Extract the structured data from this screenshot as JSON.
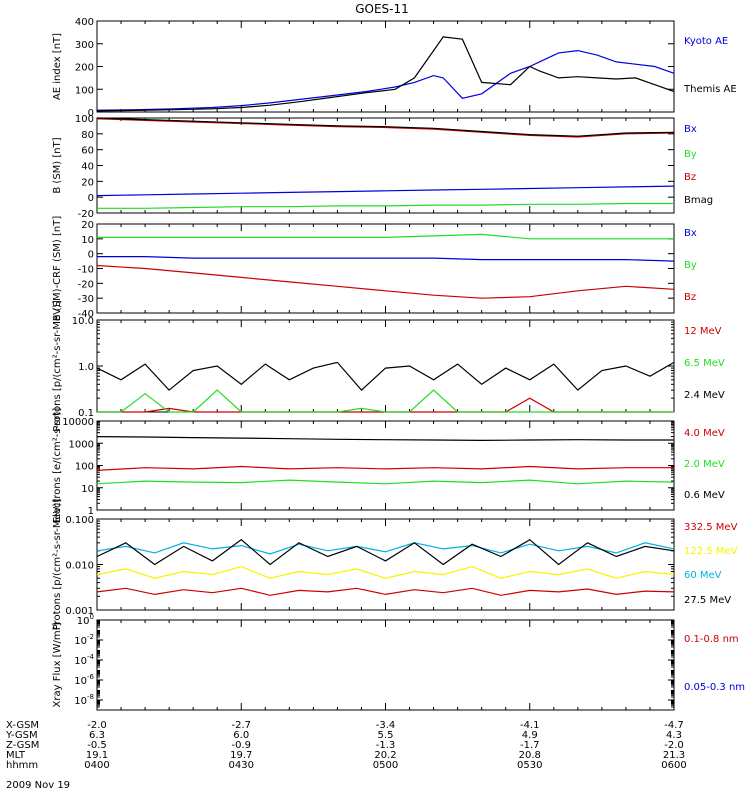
{
  "title": "GOES-11",
  "footer_date": "2009 Nov 19",
  "colors": {
    "black": "#000000",
    "red": "#cc0000",
    "green": "#22dd22",
    "blue": "#0000dd",
    "cyan": "#00b0e0",
    "yellow": "#f5f500"
  },
  "ephemeris": {
    "labels": [
      "X-GSM",
      "Y-GSM",
      "Z-GSM",
      "MLT",
      "hhmm"
    ],
    "columns": [
      [
        "-2.0",
        "6.3",
        "-0.5",
        "19.1",
        "0400"
      ],
      [
        "-2.7",
        "6.0",
        "-0.9",
        "19.7",
        "0430"
      ],
      [
        "-3.4",
        "5.5",
        "-1.3",
        "20.2",
        "0500"
      ],
      [
        "-4.1",
        "4.9",
        "-1.7",
        "20.8",
        "0530"
      ],
      [
        "-4.7",
        "4.3",
        "-2.0",
        "21.3",
        "0600"
      ]
    ]
  },
  "chart_data": [
    {
      "type": "line",
      "ylabel": "AE index [nT]",
      "ylim": [
        0,
        400
      ],
      "yscale": "linear",
      "yticks": [
        0,
        100,
        200,
        300,
        400
      ],
      "ytick_labels": [
        "0",
        "100",
        "200",
        "300",
        "400"
      ],
      "x": [
        0,
        8,
        16,
        24,
        30,
        36,
        42,
        48,
        56,
        62,
        66,
        70,
        72,
        76,
        80,
        86,
        90,
        92,
        96,
        100,
        104,
        108,
        112,
        116,
        120
      ],
      "series": [
        {
          "name": "Kyoto AE",
          "color": "blue",
          "values": [
            8,
            10,
            14,
            20,
            28,
            40,
            55,
            70,
            90,
            110,
            130,
            160,
            150,
            60,
            80,
            170,
            200,
            220,
            260,
            270,
            250,
            220,
            210,
            200,
            170
          ]
        },
        {
          "name": "Themis AE",
          "color": "black",
          "values": [
            5,
            7,
            10,
            14,
            20,
            30,
            45,
            62,
            85,
            100,
            150,
            270,
            330,
            320,
            130,
            120,
            200,
            180,
            150,
            155,
            150,
            145,
            150,
            120,
            90
          ]
        }
      ]
    },
    {
      "type": "line",
      "ylabel": "B (SM) [nT]",
      "ylim": [
        -20,
        100
      ],
      "yscale": "linear",
      "yticks": [
        -20,
        0,
        20,
        40,
        60,
        80,
        100
      ],
      "ytick_labels": [
        "-20",
        "0",
        "20",
        "40",
        "60",
        "80",
        "100"
      ],
      "x": [
        0,
        10,
        20,
        30,
        40,
        50,
        60,
        70,
        80,
        90,
        100,
        110,
        120
      ],
      "series": [
        {
          "name": "Bx",
          "color": "blue",
          "values": [
            2,
            3,
            4,
            5,
            6,
            7,
            8,
            9,
            10,
            11,
            12,
            13,
            14
          ]
        },
        {
          "name": "By",
          "color": "green",
          "values": [
            -14,
            -14,
            -13,
            -12,
            -12,
            -11,
            -11,
            -10,
            -10,
            -9,
            -9,
            -8,
            -8
          ]
        },
        {
          "name": "Bz",
          "color": "red",
          "values": [
            99,
            97,
            95,
            93,
            91,
            89,
            88,
            86,
            82,
            78,
            76,
            80,
            81
          ]
        },
        {
          "name": "Bmag",
          "color": "black",
          "values": [
            100,
            98,
            96,
            94,
            92,
            90,
            89,
            87,
            83,
            79,
            77,
            81,
            82
          ]
        }
      ]
    },
    {
      "type": "line",
      "ylabel": "B (SM)-CRF (SM) [nT]",
      "ylim": [
        -40,
        20
      ],
      "yscale": "linear",
      "yticks": [
        -40,
        -30,
        -20,
        -10,
        0,
        10,
        20
      ],
      "ytick_labels": [
        "-40",
        "-30",
        "-20",
        "-10",
        "0",
        "10",
        "20"
      ],
      "x": [
        0,
        10,
        20,
        30,
        40,
        50,
        60,
        70,
        80,
        90,
        100,
        110,
        120
      ],
      "series": [
        {
          "name": "Bx",
          "color": "blue",
          "values": [
            -2,
            -2,
            -3,
            -3,
            -3,
            -3,
            -3,
            -3,
            -4,
            -4,
            -4,
            -4,
            -5
          ]
        },
        {
          "name": "By",
          "color": "green",
          "values": [
            11,
            11,
            11,
            11,
            11,
            11,
            11,
            12,
            13,
            10,
            10,
            10,
            10
          ]
        },
        {
          "name": "Bz",
          "color": "red",
          "values": [
            -8,
            -10,
            -13,
            -16,
            -19,
            -22,
            -25,
            -28,
            -30,
            -29,
            -25,
            -22,
            -24
          ]
        }
      ]
    },
    {
      "type": "line",
      "ylabel": "Protons [p/(cm²-s-sr-MeV)]",
      "ylim": [
        0.1,
        10
      ],
      "yscale": "log",
      "yticks": [
        0.1,
        1,
        10
      ],
      "ytick_labels": [
        "0.1",
        "1.0",
        "10.0"
      ],
      "x": [
        0,
        5,
        10,
        15,
        20,
        25,
        30,
        35,
        40,
        45,
        50,
        55,
        60,
        65,
        70,
        75,
        80,
        85,
        90,
        95,
        100,
        105,
        110,
        115,
        120
      ],
      "series": [
        {
          "name": "12 MeV",
          "color": "red",
          "values": [
            0.1,
            0.1,
            0.1,
            0.12,
            0.1,
            0.1,
            0.1,
            0.1,
            0.1,
            0.1,
            0.1,
            0.1,
            0.1,
            0.1,
            0.1,
            0.1,
            0.1,
            0.1,
            0.2,
            0.1,
            0.1,
            0.1,
            0.1,
            0.1,
            0.1
          ]
        },
        {
          "name": "6.5 MeV",
          "color": "green",
          "values": [
            0.1,
            0.1,
            0.25,
            0.1,
            0.1,
            0.3,
            0.1,
            0.1,
            0.1,
            0.1,
            0.1,
            0.12,
            0.1,
            0.1,
            0.3,
            0.1,
            0.1,
            0.1,
            0.1,
            0.1,
            0.1,
            0.1,
            0.1,
            0.1,
            0.1
          ]
        },
        {
          "name": "2.4 MeV",
          "color": "black",
          "values": [
            0.9,
            0.5,
            1.1,
            0.3,
            0.8,
            1.0,
            0.4,
            1.1,
            0.5,
            0.9,
            1.2,
            0.3,
            0.9,
            1.0,
            0.5,
            1.1,
            0.4,
            0.9,
            0.5,
            1.1,
            0.3,
            0.8,
            1.0,
            0.6,
            1.2
          ]
        }
      ]
    },
    {
      "type": "line",
      "ylabel": "Electrons [e/(cm²-s-sr)]",
      "ylim": [
        1,
        10000
      ],
      "yscale": "log",
      "yticks": [
        1,
        10,
        100,
        1000,
        10000
      ],
      "ytick_labels": [
        "1",
        "10",
        "100",
        "1000",
        "10000"
      ],
      "x": [
        0,
        10,
        20,
        30,
        40,
        50,
        60,
        70,
        80,
        90,
        100,
        110,
        120
      ],
      "series": [
        {
          "name": "4.0 MeV",
          "color": "red",
          "values": [
            60,
            80,
            70,
            90,
            70,
            80,
            70,
            80,
            70,
            90,
            70,
            80,
            80
          ]
        },
        {
          "name": "2.0 MeV",
          "color": "green",
          "values": [
            15,
            20,
            18,
            17,
            22,
            18,
            15,
            20,
            17,
            22,
            15,
            20,
            18
          ]
        },
        {
          "name": "0.6 MeV",
          "color": "black",
          "values": [
            2000,
            1900,
            1800,
            1700,
            1600,
            1500,
            1450,
            1400,
            1350,
            1400,
            1450,
            1400,
            1400
          ]
        }
      ]
    },
    {
      "type": "line",
      "ylabel": "Protons [p/(cm²-s-sr-MeV)]",
      "ylim": [
        0.001,
        0.1
      ],
      "yscale": "log",
      "yticks": [
        0.001,
        0.01,
        0.1
      ],
      "ytick_labels": [
        "0.001",
        "0.010",
        "0.100"
      ],
      "x": [
        0,
        6,
        12,
        18,
        24,
        30,
        36,
        42,
        48,
        54,
        60,
        66,
        72,
        78,
        84,
        90,
        96,
        102,
        108,
        114,
        120
      ],
      "series": [
        {
          "name": "332.5 MeV",
          "color": "red",
          "values": [
            0.0025,
            0.003,
            0.0022,
            0.0028,
            0.0024,
            0.003,
            0.0021,
            0.0027,
            0.0025,
            0.003,
            0.0022,
            0.0028,
            0.0024,
            0.003,
            0.0021,
            0.0027,
            0.0025,
            0.0029,
            0.0022,
            0.0026,
            0.0025
          ]
        },
        {
          "name": "122.5 MeV",
          "color": "yellow",
          "values": [
            0.006,
            0.008,
            0.005,
            0.007,
            0.006,
            0.009,
            0.005,
            0.007,
            0.006,
            0.008,
            0.005,
            0.007,
            0.006,
            0.009,
            0.005,
            0.007,
            0.006,
            0.008,
            0.005,
            0.007,
            0.006
          ]
        },
        {
          "name": "60 MeV",
          "color": "cyan",
          "values": [
            0.02,
            0.025,
            0.018,
            0.03,
            0.022,
            0.026,
            0.017,
            0.028,
            0.02,
            0.025,
            0.019,
            0.03,
            0.022,
            0.026,
            0.018,
            0.028,
            0.02,
            0.025,
            0.018,
            0.03,
            0.022
          ]
        },
        {
          "name": "27.5 MeV",
          "color": "black",
          "values": [
            0.015,
            0.03,
            0.01,
            0.025,
            0.012,
            0.035,
            0.01,
            0.03,
            0.015,
            0.025,
            0.012,
            0.03,
            0.01,
            0.028,
            0.015,
            0.035,
            0.01,
            0.03,
            0.015,
            0.025,
            0.02
          ]
        }
      ]
    },
    {
      "type": "line",
      "ylabel": "Xray Flux [W/m²]",
      "ylim": [
        1e-09,
        1
      ],
      "yscale": "log",
      "yticks": [
        1e-08,
        1e-06,
        0.0001,
        0.01,
        1
      ],
      "ytick_labels": [
        [
          "10",
          "-8"
        ],
        [
          "10",
          "-6"
        ],
        [
          "10",
          "-4"
        ],
        [
          "10",
          "-2"
        ],
        [
          "10",
          "0"
        ]
      ],
      "x": [],
      "series": [
        {
          "name": "0.1-0.8 nm",
          "color": "red",
          "values": []
        },
        {
          "name": "0.05-0.3 nm",
          "color": "blue",
          "values": []
        }
      ]
    }
  ]
}
